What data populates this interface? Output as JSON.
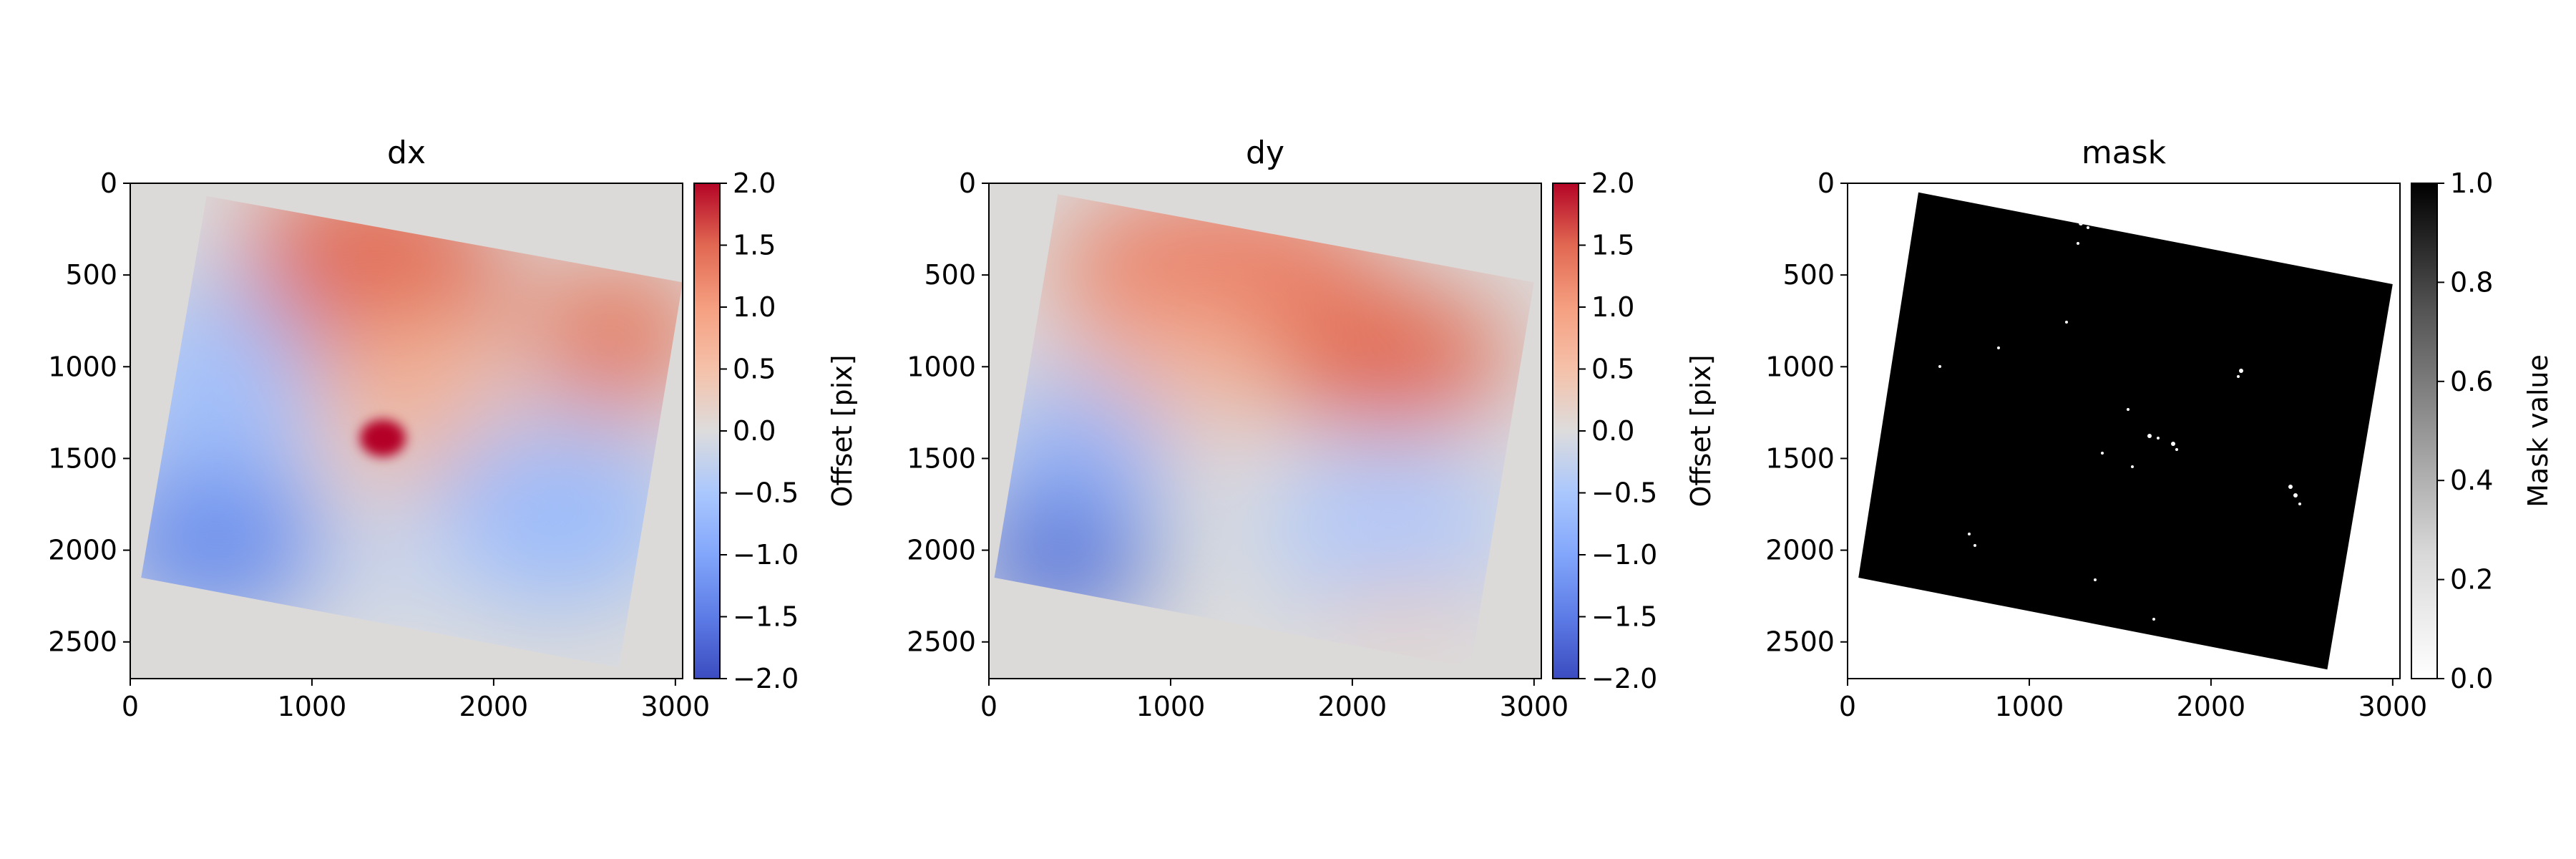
{
  "chart_data": [
    {
      "type": "heatmap",
      "title": "dx",
      "xlim": [
        0,
        3040
      ],
      "ylim": [
        2700,
        0
      ],
      "x_ticks": [
        "0",
        "1000",
        "2000",
        "3000"
      ],
      "y_ticks": [
        "0",
        "500",
        "1000",
        "1500",
        "2000",
        "2500"
      ],
      "x_tick_values": [
        0,
        1000,
        2000,
        3000
      ],
      "y_tick_values": [
        0,
        500,
        1000,
        1500,
        2000,
        2500
      ],
      "nodata_color": "#dcdad8",
      "footprint": [
        [
          420,
          70
        ],
        [
          3040,
          540
        ],
        [
          2690,
          2640
        ],
        [
          60,
          2150
        ]
      ],
      "colormap": "coolwarm",
      "colorbar": {
        "label": "Offset [pix]",
        "range": [
          -2.0,
          2.0
        ],
        "ticks": [
          "2.0",
          "1.5",
          "1.0",
          "0.5",
          "0.0",
          "−0.5",
          "−1.0",
          "−1.5",
          "−2.0"
        ],
        "tick_values": [
          2.0,
          1.5,
          1.0,
          0.5,
          0.0,
          -0.5,
          -1.0,
          -1.5,
          -2.0
        ]
      }
    },
    {
      "type": "heatmap",
      "title": "dy",
      "xlim": [
        0,
        3040
      ],
      "ylim": [
        2700,
        0
      ],
      "x_ticks": [
        "0",
        "1000",
        "2000",
        "3000"
      ],
      "y_ticks": [
        "0",
        "500",
        "1000",
        "1500",
        "2000",
        "2500"
      ],
      "x_tick_values": [
        0,
        1000,
        2000,
        3000
      ],
      "y_tick_values": [
        0,
        500,
        1000,
        1500,
        2000,
        2500
      ],
      "nodata_color": "#dcdad8",
      "footprint": [
        [
          380,
          60
        ],
        [
          3000,
          540
        ],
        [
          2650,
          2640
        ],
        [
          30,
          2150
        ]
      ],
      "colormap": "coolwarm",
      "colorbar": {
        "label": "Offset [pix]",
        "range": [
          -2.0,
          2.0
        ],
        "ticks": [
          "2.0",
          "1.5",
          "1.0",
          "0.5",
          "0.0",
          "−0.5",
          "−1.0",
          "−1.5",
          "−2.0"
        ],
        "tick_values": [
          2.0,
          1.5,
          1.0,
          0.5,
          0.0,
          -0.5,
          -1.0,
          -1.5,
          -2.0
        ]
      }
    },
    {
      "type": "heatmap",
      "title": "mask",
      "xlim": [
        0,
        3040
      ],
      "ylim": [
        2700,
        0
      ],
      "x_ticks": [
        "0",
        "1000",
        "2000",
        "3000"
      ],
      "y_ticks": [
        "0",
        "500",
        "1000",
        "1500",
        "2000",
        "2500"
      ],
      "x_tick_values": [
        0,
        1000,
        2000,
        3000
      ],
      "y_tick_values": [
        0,
        500,
        1000,
        1500,
        2000,
        2500
      ],
      "nodata_color": "#ffffff",
      "footprint": [
        [
          390,
          50
        ],
        [
          3000,
          550
        ],
        [
          2640,
          2650
        ],
        [
          60,
          2150
        ]
      ],
      "colormap": "Greys",
      "colorbar": {
        "label": "Mask value",
        "range": [
          0.0,
          1.0
        ],
        "ticks": [
          "1.0",
          "0.8",
          "0.6",
          "0.4",
          "0.2",
          "0.0"
        ],
        "tick_values": [
          1.0,
          0.8,
          0.6,
          0.4,
          0.2,
          0.0
        ]
      }
    }
  ]
}
